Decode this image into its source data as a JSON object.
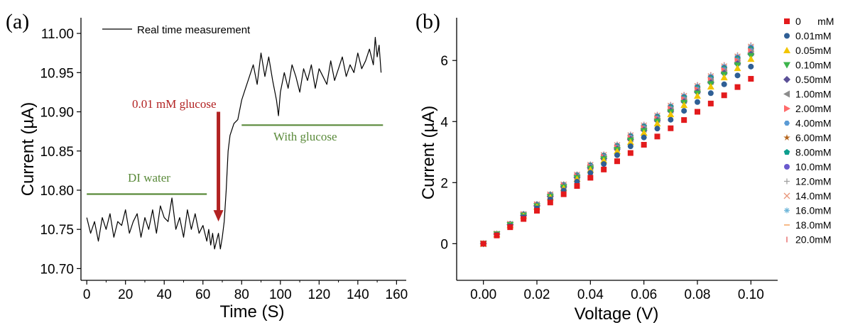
{
  "chart_data": [
    {
      "panel": "(a)",
      "type": "line",
      "xlabel": "Time (S)",
      "ylabel": "Current (µA)",
      "xlim": [
        -3,
        165
      ],
      "ylim": [
        10.685,
        11.02
      ],
      "x_ticks": [
        0,
        20,
        40,
        60,
        80,
        100,
        120,
        140,
        160
      ],
      "y_ticks": [
        10.7,
        10.75,
        10.8,
        10.85,
        10.9,
        10.95,
        11.0
      ],
      "y_tick_labels": [
        "10.70",
        "10.75",
        "10.80",
        "10.85",
        "10.90",
        "10.95",
        "11.00"
      ],
      "grid": false,
      "legend": {
        "placement": "top",
        "entries": [
          "Real time measurement"
        ]
      },
      "series": [
        {
          "name": "Real time measurement",
          "color": "#000000",
          "x": [
            0,
            2,
            4,
            6,
            8,
            10,
            12,
            14,
            16,
            18,
            20,
            22,
            24,
            26,
            28,
            30,
            32,
            34,
            36,
            38,
            40,
            42,
            44,
            46,
            48,
            50,
            52,
            54,
            56,
            58,
            60,
            62,
            63,
            64,
            65,
            66,
            67,
            68,
            69,
            70,
            71,
            72,
            73,
            74,
            76,
            78,
            80,
            82,
            84,
            86,
            88,
            90,
            92,
            94,
            96,
            98,
            99,
            100,
            102,
            104,
            106,
            108,
            110,
            112,
            114,
            116,
            118,
            120,
            122,
            124,
            126,
            128,
            130,
            132,
            134,
            136,
            138,
            140,
            142,
            144,
            146,
            148,
            149,
            150,
            151,
            152
          ],
          "y": [
            10.765,
            10.745,
            10.76,
            10.735,
            10.765,
            10.75,
            10.77,
            10.74,
            10.76,
            10.755,
            10.775,
            10.745,
            10.76,
            10.77,
            10.74,
            10.765,
            10.75,
            10.775,
            10.745,
            10.78,
            10.765,
            10.76,
            10.79,
            10.75,
            10.765,
            10.74,
            10.775,
            10.75,
            10.77,
            10.745,
            10.755,
            10.735,
            10.75,
            10.73,
            10.745,
            10.725,
            10.735,
            10.745,
            10.725,
            10.74,
            10.76,
            10.8,
            10.85,
            10.87,
            10.885,
            10.89,
            10.915,
            10.93,
            10.945,
            10.96,
            10.935,
            10.975,
            10.945,
            10.97,
            10.94,
            10.915,
            10.895,
            10.925,
            10.95,
            10.93,
            10.96,
            10.945,
            10.925,
            10.955,
            10.94,
            10.96,
            10.93,
            10.955,
            10.945,
            10.935,
            10.965,
            10.94,
            10.955,
            10.97,
            10.945,
            10.96,
            10.95,
            10.975,
            10.955,
            10.965,
            10.98,
            10.96,
            10.995,
            10.97,
            10.985,
            10.95
          ]
        }
      ],
      "annotations": [
        {
          "text": "0.01 mM glucose",
          "color": "#b22222",
          "arrow_x": 68,
          "arrow_from_y": 10.9,
          "arrow_to_y": 10.76
        },
        {
          "text": "DI water",
          "color": "#5a8a3a",
          "line_x": [
            0,
            62
          ],
          "line_y": 10.795
        },
        {
          "text": "With glucose",
          "color": "#5a8a3a",
          "line_x": [
            80,
            153
          ],
          "line_y": 10.883
        }
      ]
    },
    {
      "panel": "(b)",
      "type": "scatter",
      "xlabel": "Voltage (V)",
      "ylabel": "Current (µA)",
      "xlim": [
        -0.01,
        0.11
      ],
      "ylim": [
        -1.2,
        7.4
      ],
      "x_ticks": [
        0.0,
        0.02,
        0.04,
        0.06,
        0.08,
        0.1
      ],
      "x_tick_labels": [
        "0.00",
        "0.02",
        "0.04",
        "0.06",
        "0.08",
        "0.10"
      ],
      "y_ticks": [
        0,
        2,
        4,
        6
      ],
      "grid": false,
      "legend": {
        "placement": "right"
      },
      "x": [
        0.0,
        0.005,
        0.01,
        0.015,
        0.02,
        0.025,
        0.03,
        0.035,
        0.04,
        0.045,
        0.05,
        0.055,
        0.06,
        0.065,
        0.07,
        0.075,
        0.08,
        0.085,
        0.09,
        0.095,
        0.1
      ],
      "series": [
        {
          "name": "0      mM",
          "color": "#e31a1c",
          "marker": "square",
          "slope": 54.0
        },
        {
          "name": "0.01mM",
          "color": "#2f5f95",
          "marker": "circle",
          "slope": 58.0
        },
        {
          "name": "0.05mM",
          "color": "#f2c500",
          "marker": "triangle-up",
          "slope": 60.5
        },
        {
          "name": "0.10mM",
          "color": "#3cb44b",
          "marker": "triangle-down",
          "slope": 61.5
        },
        {
          "name": "0.50mM",
          "color": "#5a4f96",
          "marker": "diamond",
          "slope": 62.0
        },
        {
          "name": "1.00mM",
          "color": "#8c8c8c",
          "marker": "triangle-left",
          "slope": 62.5
        },
        {
          "name": "2.00mM",
          "color": "#ff6b6b",
          "marker": "triangle-right",
          "slope": 63.0
        },
        {
          "name": "4.00mM",
          "color": "#5b9bd5",
          "marker": "hexagon",
          "slope": 63.3
        },
        {
          "name": "6.00mM",
          "color": "#b5651d",
          "marker": "star",
          "slope": 63.6
        },
        {
          "name": "8.00mM",
          "color": "#0e9e8e",
          "marker": "pentagon",
          "slope": 63.9
        },
        {
          "name": "10.0mM",
          "color": "#6a5acd",
          "marker": "circle",
          "slope": 64.1
        },
        {
          "name": "12.0mM",
          "color": "#a0a0a0",
          "marker": "plus",
          "slope": 64.3
        },
        {
          "name": "14.0mM",
          "color": "#e8967a",
          "marker": "x",
          "slope": 64.5
        },
        {
          "name": "16.0mM",
          "color": "#6fb6d9",
          "marker": "asterisk",
          "slope": 64.7
        },
        {
          "name": "18.0mM",
          "color": "#f4a460",
          "marker": "hline",
          "slope": 64.8
        },
        {
          "name": "20.0mM",
          "color": "#e87070",
          "marker": "vline",
          "slope": 65.0
        }
      ]
    }
  ]
}
